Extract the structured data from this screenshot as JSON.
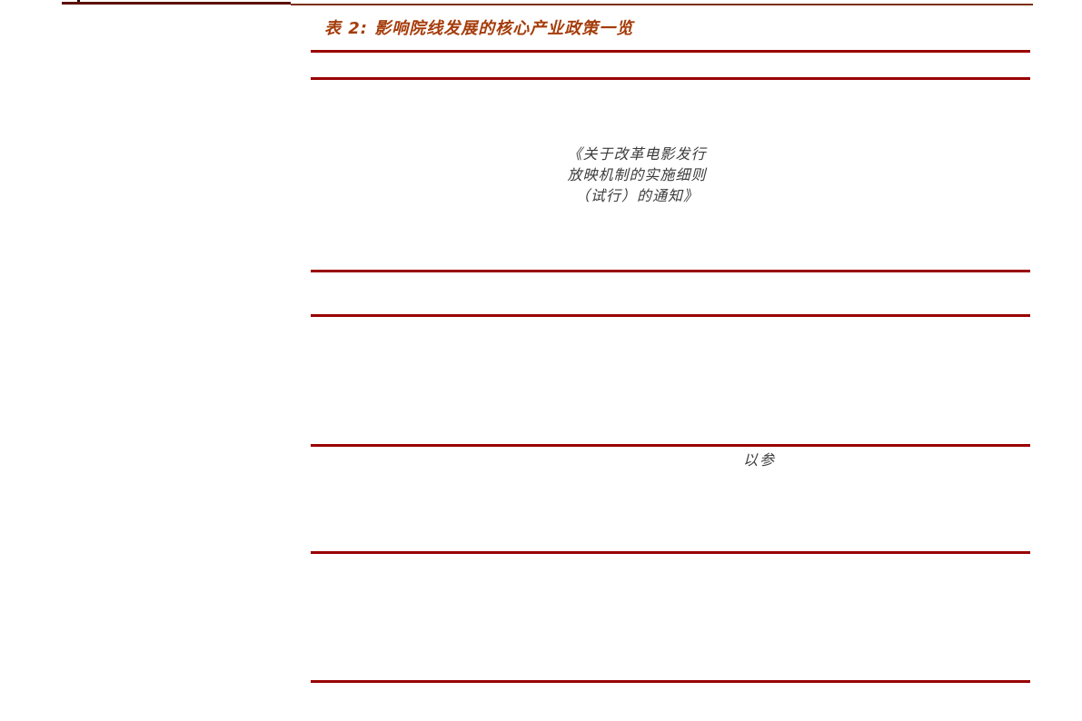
{
  "colors": {
    "table_rule": "#990000",
    "title": "#a53c0a",
    "body_text": "#3c3c3c",
    "top_rule_left": "#5c1008",
    "top_rule_right": "#7b2f08"
  },
  "table": {
    "title": "表 2: 影响院线发展的核心产业政策一览",
    "policy_cell_lines": [
      "《关于改革电影发行",
      "放映机制的实施细则",
      "（试行）的通知》"
    ],
    "text_fragment": "以参"
  }
}
